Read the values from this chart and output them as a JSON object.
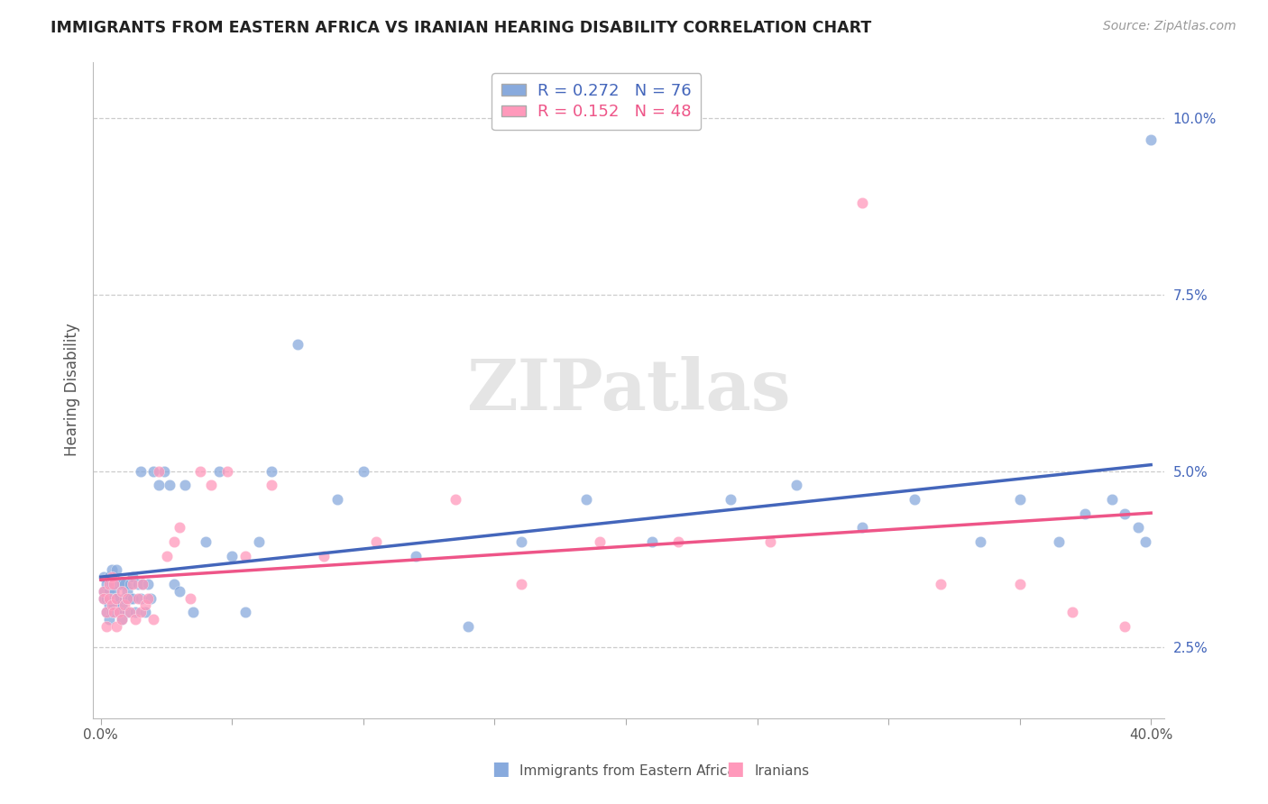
{
  "title": "IMMIGRANTS FROM EASTERN AFRICA VS IRANIAN HEARING DISABILITY CORRELATION CHART",
  "source": "Source: ZipAtlas.com",
  "ylabel": "Hearing Disability",
  "xlim": [
    -0.003,
    0.405
  ],
  "ylim": [
    0.015,
    0.108
  ],
  "xticks": [
    0.0,
    0.05,
    0.1,
    0.15,
    0.2,
    0.25,
    0.3,
    0.35,
    0.4
  ],
  "xtick_labels": [
    "0.0%",
    "",
    "",
    "",
    "",
    "",
    "",
    "",
    "40.0%"
  ],
  "yticks": [
    0.025,
    0.05,
    0.075,
    0.1
  ],
  "ytick_labels": [
    "2.5%",
    "5.0%",
    "7.5%",
    "10.0%"
  ],
  "blue_color": "#88AADD",
  "pink_color": "#FF99BB",
  "blue_line_color": "#4466BB",
  "pink_line_color": "#EE5588",
  "legend_R_blue": "R = 0.272",
  "legend_N_blue": "N = 76",
  "legend_R_pink": "R = 0.152",
  "legend_N_pink": "N = 48",
  "blue_scatter_x": [
    0.001,
    0.001,
    0.001,
    0.002,
    0.002,
    0.002,
    0.003,
    0.003,
    0.003,
    0.003,
    0.004,
    0.004,
    0.004,
    0.005,
    0.005,
    0.005,
    0.005,
    0.006,
    0.006,
    0.006,
    0.007,
    0.007,
    0.008,
    0.008,
    0.008,
    0.009,
    0.009,
    0.01,
    0.01,
    0.011,
    0.011,
    0.012,
    0.012,
    0.013,
    0.014,
    0.015,
    0.015,
    0.016,
    0.017,
    0.018,
    0.019,
    0.02,
    0.022,
    0.024,
    0.026,
    0.028,
    0.03,
    0.032,
    0.035,
    0.04,
    0.045,
    0.05,
    0.055,
    0.06,
    0.065,
    0.075,
    0.09,
    0.1,
    0.12,
    0.14,
    0.16,
    0.185,
    0.21,
    0.24,
    0.265,
    0.29,
    0.31,
    0.335,
    0.35,
    0.365,
    0.375,
    0.385,
    0.39,
    0.395,
    0.398,
    0.4
  ],
  "blue_scatter_y": [
    0.033,
    0.035,
    0.032,
    0.03,
    0.034,
    0.032,
    0.031,
    0.033,
    0.035,
    0.029,
    0.03,
    0.034,
    0.036,
    0.031,
    0.033,
    0.032,
    0.035,
    0.03,
    0.032,
    0.036,
    0.03,
    0.034,
    0.031,
    0.034,
    0.029,
    0.032,
    0.034,
    0.033,
    0.03,
    0.034,
    0.032,
    0.035,
    0.032,
    0.03,
    0.034,
    0.05,
    0.032,
    0.034,
    0.03,
    0.034,
    0.032,
    0.05,
    0.048,
    0.05,
    0.048,
    0.034,
    0.033,
    0.048,
    0.03,
    0.04,
    0.05,
    0.038,
    0.03,
    0.04,
    0.05,
    0.068,
    0.046,
    0.05,
    0.038,
    0.028,
    0.04,
    0.046,
    0.04,
    0.046,
    0.048,
    0.042,
    0.046,
    0.04,
    0.046,
    0.04,
    0.044,
    0.046,
    0.044,
    0.042,
    0.04,
    0.097
  ],
  "pink_scatter_x": [
    0.001,
    0.001,
    0.002,
    0.002,
    0.003,
    0.003,
    0.004,
    0.004,
    0.005,
    0.005,
    0.006,
    0.006,
    0.007,
    0.008,
    0.008,
    0.009,
    0.01,
    0.011,
    0.012,
    0.013,
    0.014,
    0.015,
    0.016,
    0.017,
    0.018,
    0.02,
    0.022,
    0.025,
    0.028,
    0.03,
    0.034,
    0.038,
    0.042,
    0.048,
    0.055,
    0.065,
    0.085,
    0.105,
    0.135,
    0.16,
    0.19,
    0.22,
    0.255,
    0.29,
    0.32,
    0.35,
    0.37,
    0.39
  ],
  "pink_scatter_y": [
    0.033,
    0.032,
    0.03,
    0.028,
    0.032,
    0.034,
    0.031,
    0.035,
    0.03,
    0.034,
    0.032,
    0.028,
    0.03,
    0.033,
    0.029,
    0.031,
    0.032,
    0.03,
    0.034,
    0.029,
    0.032,
    0.03,
    0.034,
    0.031,
    0.032,
    0.029,
    0.05,
    0.038,
    0.04,
    0.042,
    0.032,
    0.05,
    0.048,
    0.05,
    0.038,
    0.048,
    0.038,
    0.04,
    0.046,
    0.034,
    0.04,
    0.04,
    0.04,
    0.088,
    0.034,
    0.034,
    0.03,
    0.028
  ],
  "watermark": "ZIPatlas",
  "background_color": "#FFFFFF",
  "grid_color": "#CCCCCC",
  "legend_label_blue": "Immigrants from Eastern Africa",
  "legend_label_pink": "Iranians"
}
